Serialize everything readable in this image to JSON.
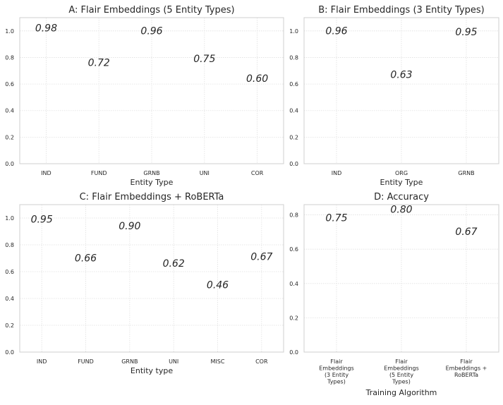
{
  "chart_data": [
    {
      "type": "bar",
      "title": "A:    Flair Embeddings (5 Entity Types)",
      "xlabel": "Entity Type",
      "ylabel": "",
      "ylim": [
        0,
        1.1
      ],
      "yticks": [
        "0.0",
        "0.2",
        "0.4",
        "0.6",
        "0.8",
        "1.0"
      ],
      "grid": true,
      "categories": [
        "IND",
        "FUND",
        "GRNB",
        "UNI",
        "COR"
      ],
      "values": [
        0.98,
        0.72,
        0.96,
        0.75,
        0.6
      ],
      "value_labels": [
        "0.98",
        "0.72",
        "0.96",
        "0.75",
        "0.60"
      ],
      "colors": [
        "#7b96e0",
        "#a9c5f6",
        "#dcdcdc",
        "#f2b09a",
        "#d6654b"
      ],
      "hatches": [
        "diag",
        "dots",
        "cross",
        "grid",
        "stars"
      ]
    },
    {
      "type": "bar",
      "title": "B:    Flair Embeddings (3 Entity Types)",
      "xlabel": "Entity Type",
      "ylabel": "",
      "ylim": [
        0,
        1.1
      ],
      "yticks": [
        "0.0",
        "0.2",
        "0.4",
        "0.6",
        "0.8",
        "1.0"
      ],
      "grid": true,
      "categories": [
        "IND",
        "ORG",
        "GRNB"
      ],
      "values": [
        0.96,
        0.63,
        0.95
      ],
      "value_labels": [
        "0.96",
        "0.63",
        "0.95"
      ],
      "colors": [
        "#9cb8f4",
        "#dcdcdc",
        "#ec9b80"
      ],
      "hatches": [
        "diag",
        "dots",
        "cross"
      ]
    },
    {
      "type": "bar",
      "title": "C:    Flair Embeddings + RoBERTa",
      "xlabel": "Entity type",
      "ylabel": "",
      "ylim": [
        0,
        1.1
      ],
      "yticks": [
        "0.0",
        "0.2",
        "0.4",
        "0.6",
        "0.8",
        "1.0"
      ],
      "grid": true,
      "categories": [
        "IND",
        "FUND",
        "GRNB",
        "UNI",
        "MISC",
        "COR"
      ],
      "values": [
        0.95,
        0.66,
        0.9,
        0.62,
        0.46,
        0.67
      ],
      "value_labels": [
        "0.95",
        "0.66",
        "0.90",
        "0.62",
        "0.46",
        "0.67"
      ],
      "colors": [
        "#7b96e0",
        "#a9c5f6",
        "#cfdaf0",
        "#f2d0c4",
        "#f2b09a",
        "#d6654b"
      ],
      "hatches": [
        "diag",
        "dots",
        "cross",
        "stars",
        "grid",
        "vlines"
      ]
    },
    {
      "type": "bar",
      "title": "D:    Accuracy",
      "xlabel": "Training Algorithm",
      "ylabel": "",
      "ylim": [
        0,
        0.86
      ],
      "yticks": [
        "0.0",
        "0.2",
        "0.4",
        "0.6",
        "0.8"
      ],
      "grid": true,
      "categories": [
        [
          "Flair",
          "Embeddings",
          "(3 Entity",
          "Types)"
        ],
        [
          "Flair",
          "Embeddings",
          "(5 Entity",
          "Types)"
        ],
        [
          "Flair",
          "Embeddings +",
          "RoBERTa"
        ]
      ],
      "values": [
        0.75,
        0.8,
        0.67
      ],
      "value_labels": [
        "0.75",
        "0.80",
        "0.67"
      ],
      "colors": [
        "#9cb8f4",
        "#dcdcdc",
        "#ec9b80"
      ],
      "hatches": [
        "diag",
        "dots",
        "cross"
      ]
    }
  ]
}
